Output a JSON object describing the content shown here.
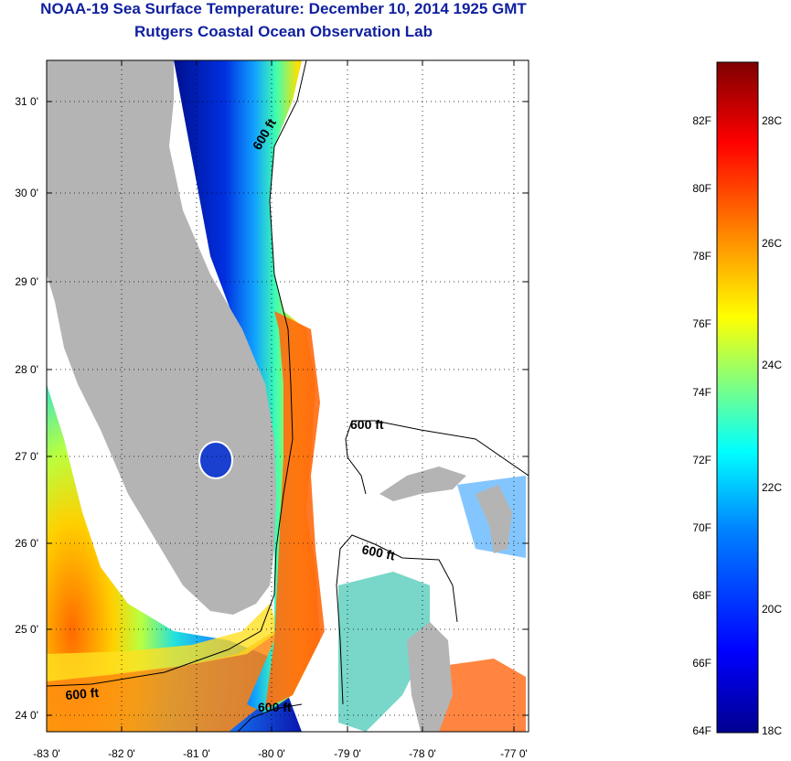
{
  "header": {
    "title": "NOAA-19 Sea Surface Temperature:  December 10, 2014 1925 GMT",
    "subtitle": "Rutgers Coastal Ocean Observation Lab"
  },
  "map": {
    "lon_ticks": [
      "-83 0'",
      "-82 0'",
      "-81 0'",
      "-80 0'",
      "-79 0'",
      "-78 0'",
      "-77 0'"
    ],
    "lat_ticks": [
      "24 0'",
      "25 0'",
      "26 0'",
      "27 0'",
      "28 0'",
      "29 0'",
      "30 0'",
      "31 0'"
    ],
    "contour_labels": [
      "600 ft",
      "600 ft",
      "600 ft",
      "600 ft",
      "600 ft"
    ],
    "colors": {
      "land": "#b4b4b4",
      "ocean_cloud": "#ffffff"
    }
  },
  "colorbar": {
    "fahrenheit_labels": [
      "82F",
      "80F",
      "78F",
      "76F",
      "74F",
      "72F",
      "70F",
      "68F",
      "66F",
      "64F"
    ],
    "celsius_labels": [
      "28C",
      "26C",
      "24C",
      "22C",
      "20C",
      "18C"
    ],
    "colors": [
      "#7f0000",
      "#ff0000",
      "#ff8000",
      "#ffff00",
      "#80ff80",
      "#00ffff",
      "#0080ff",
      "#0000ff",
      "#00008f"
    ]
  }
}
